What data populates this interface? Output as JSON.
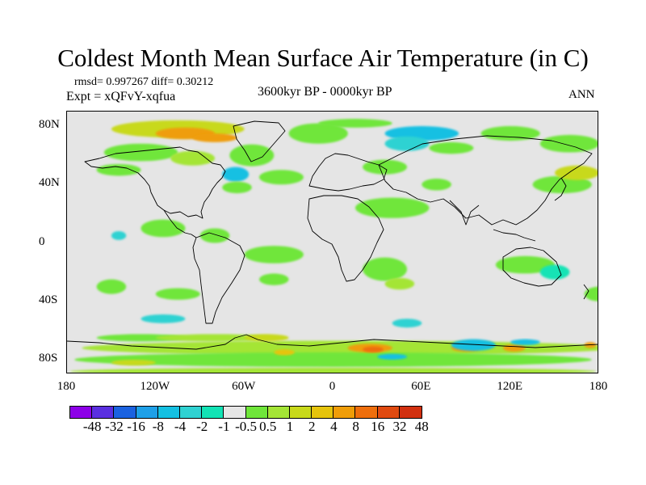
{
  "title": "Coldest Month Mean Surface Air Temperature (in C)",
  "stats": "rmsd= 0.997267 diff= 0.30212",
  "experiment": "Expt = xQFvY-xqfua",
  "period": "3600kyr BP - 0000kyr BP",
  "season": "ANN",
  "map": {
    "projection": "cylindrical-equidistant",
    "lon_range": [
      -180,
      180
    ],
    "lat_range": [
      -90,
      90
    ],
    "y_ticks": [
      "80N",
      "40N",
      "0",
      "40S",
      "80S"
    ],
    "y_tick_values": [
      80,
      40,
      0,
      -40,
      -80
    ],
    "x_ticks": [
      "180",
      "120W",
      "60W",
      "0",
      "60E",
      "120E",
      "180"
    ],
    "x_tick_values": [
      -180,
      -120,
      -60,
      0,
      60,
      120,
      180
    ]
  },
  "colorbar": {
    "colors": [
      "#8d00e8",
      "#5a2fe0",
      "#1b62e0",
      "#1ea0e8",
      "#14c0e2",
      "#2fd2d2",
      "#12e3b5",
      "#e6e6e6",
      "#6fe63a",
      "#a4e536",
      "#c8d91a",
      "#e6c40c",
      "#ef9d08",
      "#ee6e0c",
      "#e04a10",
      "#d2300f"
    ],
    "labels": [
      "-48",
      "-32",
      "-16",
      "-8",
      "-4",
      "-2",
      "-1",
      "-0.5",
      "0.5",
      "1",
      "2",
      "4",
      "8",
      "16",
      "32",
      "48"
    ]
  },
  "regions": [
    {
      "lon": -170,
      "lat": -72,
      "w": 360,
      "h": 10,
      "cls": 2
    },
    {
      "lon": -175,
      "lat": -80,
      "w": 350,
      "h": 10,
      "cls": 1
    },
    {
      "lon": -178,
      "lat": -88,
      "w": 356,
      "h": 5,
      "cls": 2
    },
    {
      "lon": -160,
      "lat": -65,
      "w": 60,
      "h": 5,
      "cls": 1
    },
    {
      "lon": -120,
      "lat": -65,
      "w": 80,
      "h": 5,
      "cls": 2
    },
    {
      "lon": -60,
      "lat": -65,
      "w": 30,
      "h": 5,
      "cls": 3
    },
    {
      "lon": 10,
      "lat": -72,
      "w": 30,
      "h": 6,
      "cls": 5
    },
    {
      "lon": 20,
      "lat": -73,
      "w": 14,
      "h": 4,
      "cls": 6
    },
    {
      "lon": 80,
      "lat": -72,
      "w": 20,
      "h": 5,
      "cls": 5
    },
    {
      "lon": 115,
      "lat": -72,
      "w": 15,
      "h": 5,
      "cls": 5
    },
    {
      "lon": 170,
      "lat": -70,
      "w": 8,
      "h": 4,
      "cls": 5
    },
    {
      "lon": -40,
      "lat": -75,
      "w": 14,
      "h": 4,
      "cls": 4
    },
    {
      "lon": -150,
      "lat": -82,
      "w": 30,
      "h": 4,
      "cls": 3
    },
    {
      "lon": 80,
      "lat": -70,
      "w": 30,
      "h": 8,
      "cls": -3
    },
    {
      "lon": 120,
      "lat": -68,
      "w": 20,
      "h": 4,
      "cls": -3
    },
    {
      "lon": 30,
      "lat": -78,
      "w": 20,
      "h": 4,
      "cls": -3
    },
    {
      "lon": -150,
      "lat": 78,
      "w": 90,
      "h": 12,
      "cls": 3
    },
    {
      "lon": -120,
      "lat": 75,
      "w": 40,
      "h": 8,
      "cls": 5
    },
    {
      "lon": -95,
      "lat": 72,
      "w": 30,
      "h": 6,
      "cls": 5
    },
    {
      "lon": -155,
      "lat": 62,
      "w": 50,
      "h": 12,
      "cls": 1
    },
    {
      "lon": -110,
      "lat": 58,
      "w": 30,
      "h": 10,
      "cls": 2
    },
    {
      "lon": -70,
      "lat": 60,
      "w": 30,
      "h": 15,
      "cls": 1
    },
    {
      "lon": -30,
      "lat": 75,
      "w": 40,
      "h": 14,
      "cls": 1
    },
    {
      "lon": -10,
      "lat": 82,
      "w": 50,
      "h": 6,
      "cls": 1
    },
    {
      "lon": 35,
      "lat": 75,
      "w": 50,
      "h": 10,
      "cls": -3
    },
    {
      "lon": 35,
      "lat": 68,
      "w": 30,
      "h": 10,
      "cls": -2
    },
    {
      "lon": 65,
      "lat": 65,
      "w": 30,
      "h": 8,
      "cls": 1
    },
    {
      "lon": 100,
      "lat": 75,
      "w": 40,
      "h": 10,
      "cls": 1
    },
    {
      "lon": 140,
      "lat": 68,
      "w": 40,
      "h": 12,
      "cls": 1
    },
    {
      "lon": -75,
      "lat": 47,
      "w": 18,
      "h": 10,
      "cls": -3
    },
    {
      "lon": -75,
      "lat": 38,
      "w": 20,
      "h": 8,
      "cls": 1
    },
    {
      "lon": -50,
      "lat": 45,
      "w": 30,
      "h": 10,
      "cls": 1
    },
    {
      "lon": 20,
      "lat": 52,
      "w": 30,
      "h": 10,
      "cls": 1
    },
    {
      "lon": 15,
      "lat": 24,
      "w": 50,
      "h": 14,
      "cls": 1
    },
    {
      "lon": 60,
      "lat": 40,
      "w": 20,
      "h": 8,
      "cls": 1
    },
    {
      "lon": 135,
      "lat": 40,
      "w": 40,
      "h": 12,
      "cls": 1
    },
    {
      "lon": 150,
      "lat": 48,
      "w": 30,
      "h": 10,
      "cls": 3
    },
    {
      "lon": -130,
      "lat": 10,
      "w": 30,
      "h": 12,
      "cls": 1
    },
    {
      "lon": -60,
      "lat": -8,
      "w": 40,
      "h": 12,
      "cls": 1
    },
    {
      "lon": -50,
      "lat": -25,
      "w": 20,
      "h": 8,
      "cls": 1
    },
    {
      "lon": -90,
      "lat": 5,
      "w": 20,
      "h": 10,
      "cls": 1
    },
    {
      "lon": 20,
      "lat": -18,
      "w": 30,
      "h": 16,
      "cls": 1
    },
    {
      "lon": 35,
      "lat": -28,
      "w": 20,
      "h": 8,
      "cls": 2
    },
    {
      "lon": 110,
      "lat": -15,
      "w": 40,
      "h": 12,
      "cls": 1
    },
    {
      "lon": 140,
      "lat": -20,
      "w": 20,
      "h": 10,
      "cls": -1
    },
    {
      "lon": -160,
      "lat": -30,
      "w": 20,
      "h": 10,
      "cls": 1
    },
    {
      "lon": 170,
      "lat": -35,
      "w": 20,
      "h": 10,
      "cls": 1
    },
    {
      "lon": -120,
      "lat": -35,
      "w": 30,
      "h": 8,
      "cls": 1
    },
    {
      "lon": -150,
      "lat": 5,
      "w": 10,
      "h": 6,
      "cls": -2
    },
    {
      "lon": -130,
      "lat": -52,
      "w": 30,
      "h": 6,
      "cls": -2
    },
    {
      "lon": 40,
      "lat": -55,
      "w": 20,
      "h": 6,
      "cls": -2
    },
    {
      "lon": -160,
      "lat": 50,
      "w": 30,
      "h": 8,
      "cls": 1
    }
  ]
}
